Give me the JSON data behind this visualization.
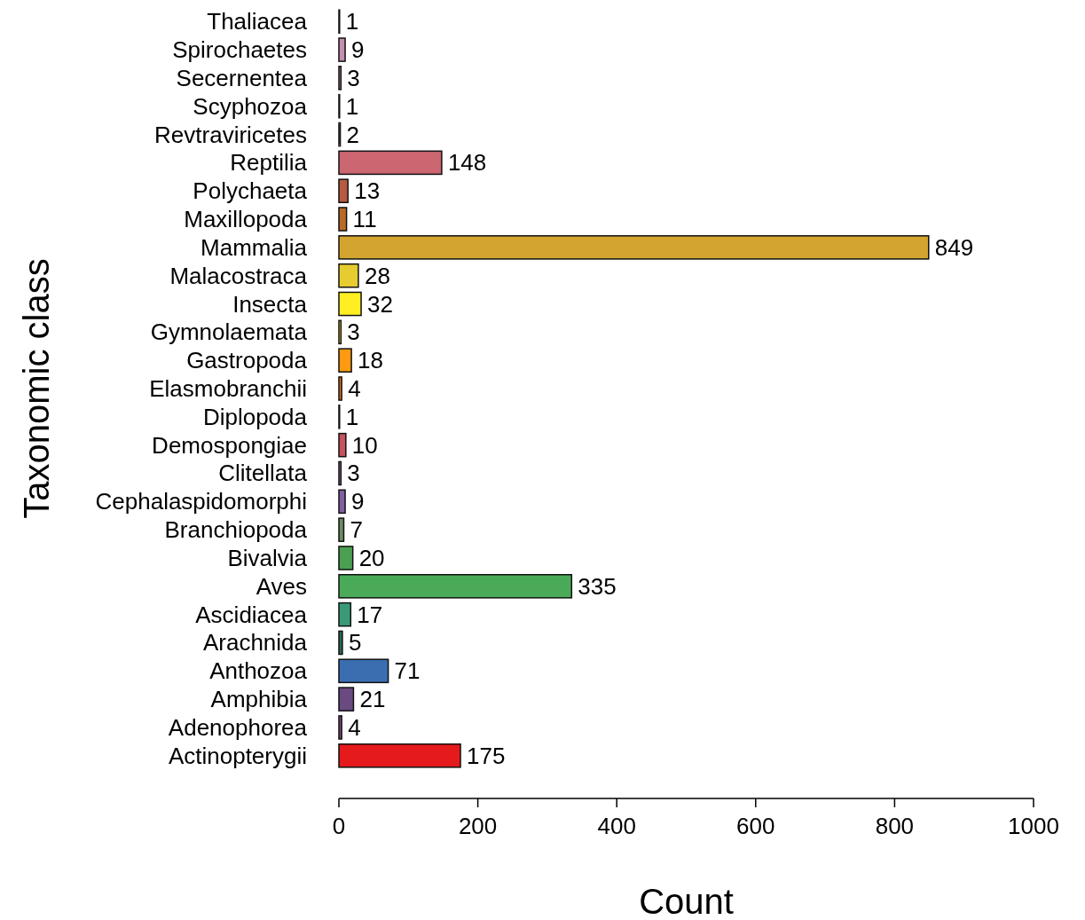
{
  "chart_data": {
    "type": "bar",
    "orientation": "horizontal",
    "xlabel": "Count",
    "ylabel": "Taxonomic class",
    "categories": [
      "Thaliacea",
      "Spirochaetes",
      "Secernentea",
      "Scyphozoa",
      "Revtraviricetes",
      "Reptilia",
      "Polychaeta",
      "Maxillopoda",
      "Mammalia",
      "Malacostraca",
      "Insecta",
      "Gymnolaemata",
      "Gastropoda",
      "Elasmobranchii",
      "Diplopoda",
      "Demospongiae",
      "Clitellata",
      "Cephalaspidomorphi",
      "Branchiopoda",
      "Bivalvia",
      "Aves",
      "Ascidiacea",
      "Arachnida",
      "Anthozoa",
      "Amphibia",
      "Adenophorea",
      "Actinopterygii"
    ],
    "values": [
      1,
      9,
      3,
      1,
      2,
      148,
      13,
      11,
      849,
      28,
      32,
      3,
      18,
      4,
      1,
      10,
      3,
      9,
      7,
      20,
      335,
      17,
      5,
      71,
      21,
      4,
      175
    ],
    "colors": [
      "#d9a0c8",
      "#c48fb0",
      "#b07a9a",
      "#d9a6c0",
      "#c07080",
      "#cc6670",
      "#b85a40",
      "#b86a28",
      "#d4a430",
      "#e6cc30",
      "#ffee22",
      "#ffcc20",
      "#ff9a10",
      "#e0701a",
      "#c8a0b0",
      "#c85060",
      "#9966aa",
      "#8060a0",
      "#6a8a60",
      "#4aa050",
      "#4aaa58",
      "#3a9a78",
      "#2a6a5a",
      "#3a6eb0",
      "#6a4a80",
      "#7a4a7a",
      "#e41a1c"
    ],
    "xlim": [
      0,
      1000
    ],
    "xticks": [
      0,
      200,
      400,
      600,
      800,
      1000
    ],
    "data_labels": true,
    "grid": false
  }
}
